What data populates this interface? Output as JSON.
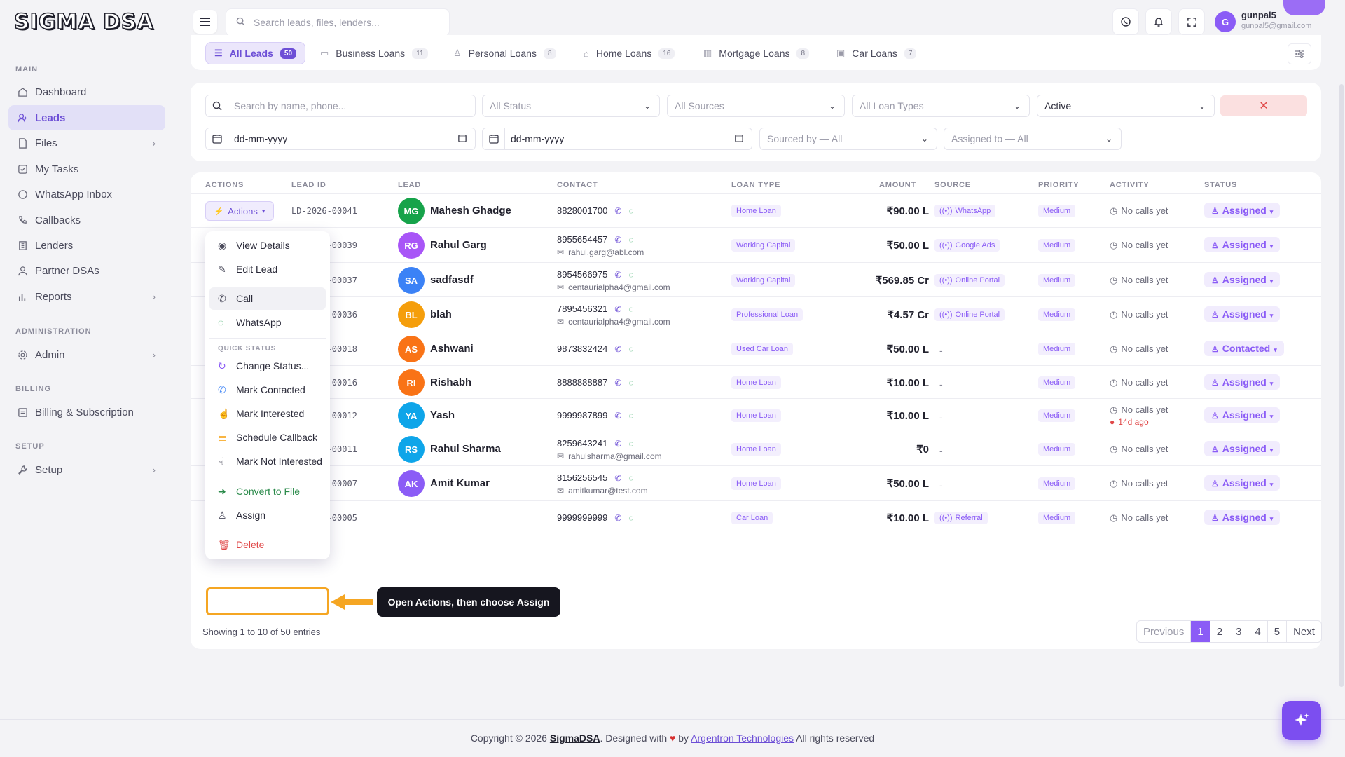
{
  "brand": {
    "logo": "SIGMA DSA"
  },
  "sidebar": {
    "sections": [
      {
        "label": "MAIN"
      },
      {
        "label": "ADMINISTRATION"
      },
      {
        "label": "BILLING"
      },
      {
        "label": "SETUP"
      }
    ],
    "items": [
      {
        "label": "Dashboard",
        "icon": "dashboard-icon"
      },
      {
        "label": "Leads",
        "icon": "leads-icon",
        "active": true
      },
      {
        "label": "Files",
        "icon": "files-icon",
        "chevron": "›"
      },
      {
        "label": "My Tasks",
        "icon": "tasks-icon"
      },
      {
        "label": "WhatsApp Inbox",
        "icon": "whatsapp-icon"
      },
      {
        "label": "Callbacks",
        "icon": "phone-icon"
      },
      {
        "label": "Lenders",
        "icon": "building-icon"
      },
      {
        "label": "Partner DSAs",
        "icon": "partners-icon"
      },
      {
        "label": "Reports",
        "icon": "chart-icon",
        "chevron": "›"
      },
      {
        "label": "Admin",
        "icon": "gear-icon",
        "chevron": "›"
      },
      {
        "label": "Billing & Subscription",
        "icon": "card-icon"
      },
      {
        "label": "Setup",
        "icon": "wrench-icon",
        "chevron": "›"
      }
    ]
  },
  "topbar": {
    "search_placeholder": "Search leads, files, lenders...",
    "user_initial": "G",
    "user_name": "gunpal5",
    "user_email": "gunpal5@gmail.com"
  },
  "tabs": [
    {
      "label": "All Leads",
      "count": "50",
      "active": true
    },
    {
      "label": "Business Loans",
      "count": "11"
    },
    {
      "label": "Personal Loans",
      "count": "8"
    },
    {
      "label": "Home Loans",
      "count": "16"
    },
    {
      "label": "Mortgage Loans",
      "count": "8"
    },
    {
      "label": "Car Loans",
      "count": "7"
    }
  ],
  "filters": {
    "search_placeholder": "Search by name, phone...",
    "status": "All Status",
    "sources": "All Sources",
    "loan_types": "All Loan Types",
    "active": "Active",
    "clear": "✕",
    "date_from": "dd-mm-yyyy",
    "date_to": "dd-mm-yyyy",
    "sourced_by": "Sourced by — All",
    "assigned_to": "Assigned to — All"
  },
  "table": {
    "headers": [
      "ACTIONS",
      "LEAD ID",
      "LEAD",
      "CONTACT",
      "LOAN TYPE",
      "AMOUNT",
      "SOURCE",
      "PRIORITY",
      "ACTIVITY",
      "STATUS"
    ],
    "actions_label": "Actions",
    "rows": [
      {
        "id": "LD-2026-00041",
        "initials": "MG",
        "color": "#16a34a",
        "name": "Mahesh Ghadge",
        "phone": "8828001700",
        "email": "",
        "loan": "Home Loan",
        "amount": "₹90.00 L",
        "source": "WhatsApp",
        "priority": "Medium",
        "activity": "No calls yet",
        "activity2": "",
        "status": "Assigned"
      },
      {
        "id": "LD-2026-00039",
        "initials": "RG",
        "color": "#a855f7",
        "name": "Rahul Garg",
        "phone": "8955654457",
        "email": "rahul.garg@abl.com",
        "loan": "Working Capital",
        "amount": "₹50.00 L",
        "source": "Google Ads",
        "priority": "Medium",
        "activity": "No calls yet",
        "activity2": "",
        "status": "Assigned"
      },
      {
        "id": "LD-2026-00037",
        "initials": "SA",
        "color": "#3b82f6",
        "name": "sadfasdf",
        "phone": "8954566975",
        "email": "centaurialpha4@gmail.com",
        "loan": "Working Capital",
        "amount": "₹569.85 Cr",
        "source": "Online Portal",
        "priority": "Medium",
        "activity": "No calls yet",
        "activity2": "",
        "status": "Assigned"
      },
      {
        "id": "LD-2026-00036",
        "initials": "BL",
        "color": "#f59e0b",
        "name": "blah",
        "phone": "7895456321",
        "email": "centaurialpha4@gmail.com",
        "loan": "Professional Loan",
        "amount": "₹4.57 Cr",
        "source": "Online Portal",
        "priority": "Medium",
        "activity": "No calls yet",
        "activity2": "",
        "status": "Assigned"
      },
      {
        "id": "LD-2026-00018",
        "initials": "AS",
        "color": "#f97316",
        "name": "Ashwani",
        "phone": "9873832424",
        "email": "",
        "loan": "Used Car Loan",
        "amount": "₹50.00 L",
        "source": "-",
        "priority": "Medium",
        "activity": "No calls yet",
        "activity2": "",
        "status": "Contacted"
      },
      {
        "id": "LD-2026-00016",
        "initials": "RI",
        "color": "#f97316",
        "name": "Rishabh",
        "phone": "8888888887",
        "email": "",
        "loan": "Home Loan",
        "amount": "₹10.00 L",
        "source": "-",
        "priority": "Medium",
        "activity": "No calls yet",
        "activity2": "",
        "status": "Assigned"
      },
      {
        "id": "LD-2026-00012",
        "initials": "YA",
        "color": "#0ea5e9",
        "name": "Yash",
        "phone": "9999987899",
        "email": "",
        "loan": "Home Loan",
        "amount": "₹10.00 L",
        "source": "-",
        "priority": "Medium",
        "activity": "No calls yet",
        "activity2": "14d ago",
        "status": "Assigned"
      },
      {
        "id": "LD-2026-00011",
        "initials": "RS",
        "color": "#0ea5e9",
        "name": "Rahul Sharma",
        "phone": "8259643241",
        "email": "rahulsharma@gmail.com",
        "loan": "Home Loan",
        "amount": "₹0",
        "source": "-",
        "priority": "Medium",
        "activity": "No calls yet",
        "activity2": "",
        "status": "Assigned"
      },
      {
        "id": "LD-2026-00007",
        "initials": "AK",
        "color": "#8b5cf6",
        "name": "Amit Kumar",
        "phone": "8156256545",
        "email": "amitkumar@test.com",
        "loan": "Home Loan",
        "amount": "₹50.00 L",
        "source": "-",
        "priority": "Medium",
        "activity": "No calls yet",
        "activity2": "",
        "status": "Assigned"
      },
      {
        "id": "LD-2026-00005",
        "initials": "",
        "color": "#8b5cf6",
        "name": "",
        "phone": "9999999999",
        "email": "",
        "loan": "Car Loan",
        "amount": "₹10.00 L",
        "source": "Referral",
        "priority": "Medium",
        "activity": "No calls yet",
        "activity2": "",
        "status": "Assigned"
      }
    ]
  },
  "menu": {
    "items": [
      {
        "label": "View Details",
        "icon": "eye-icon"
      },
      {
        "label": "Edit Lead",
        "icon": "pencil-icon"
      },
      {
        "label": "Call",
        "icon": "phone-icon"
      },
      {
        "label": "WhatsApp",
        "icon": "whatsapp-icon"
      },
      {
        "label": "Change Status...",
        "icon": "refresh-icon"
      },
      {
        "label": "Mark Contacted",
        "icon": "phone-outgoing-icon"
      },
      {
        "label": "Mark Interested",
        "icon": "thumbs-up-icon"
      },
      {
        "label": "Schedule Callback",
        "icon": "calendar-icon"
      },
      {
        "label": "Mark Not Interested",
        "icon": "thumbs-down-icon"
      },
      {
        "label": "Convert to File",
        "icon": "arrow-right-circle-icon"
      },
      {
        "label": "Assign",
        "icon": "user-plus-icon"
      },
      {
        "label": "Delete",
        "icon": "trash-icon"
      }
    ],
    "section_label": "QUICK STATUS"
  },
  "tutorial": {
    "tooltip": "Open Actions, then choose Assign"
  },
  "pagination": {
    "showing": "Showing 1 to 10 of 50 entries",
    "previous": "Previous",
    "pages": [
      "1",
      "2",
      "3",
      "4",
      "5"
    ],
    "next": "Next"
  },
  "footer": {
    "prefix": "Copyright © 2026 ",
    "brand": "SigmaDSA",
    "middle": ". Designed with ",
    "heart": "♥",
    "by": " by ",
    "company": "Argentron Technologies",
    "suffix": " All rights reserved"
  },
  "colors": {
    "accent": "#6d4fd6",
    "highlight": "#f5a623",
    "danger": "#e04848"
  }
}
